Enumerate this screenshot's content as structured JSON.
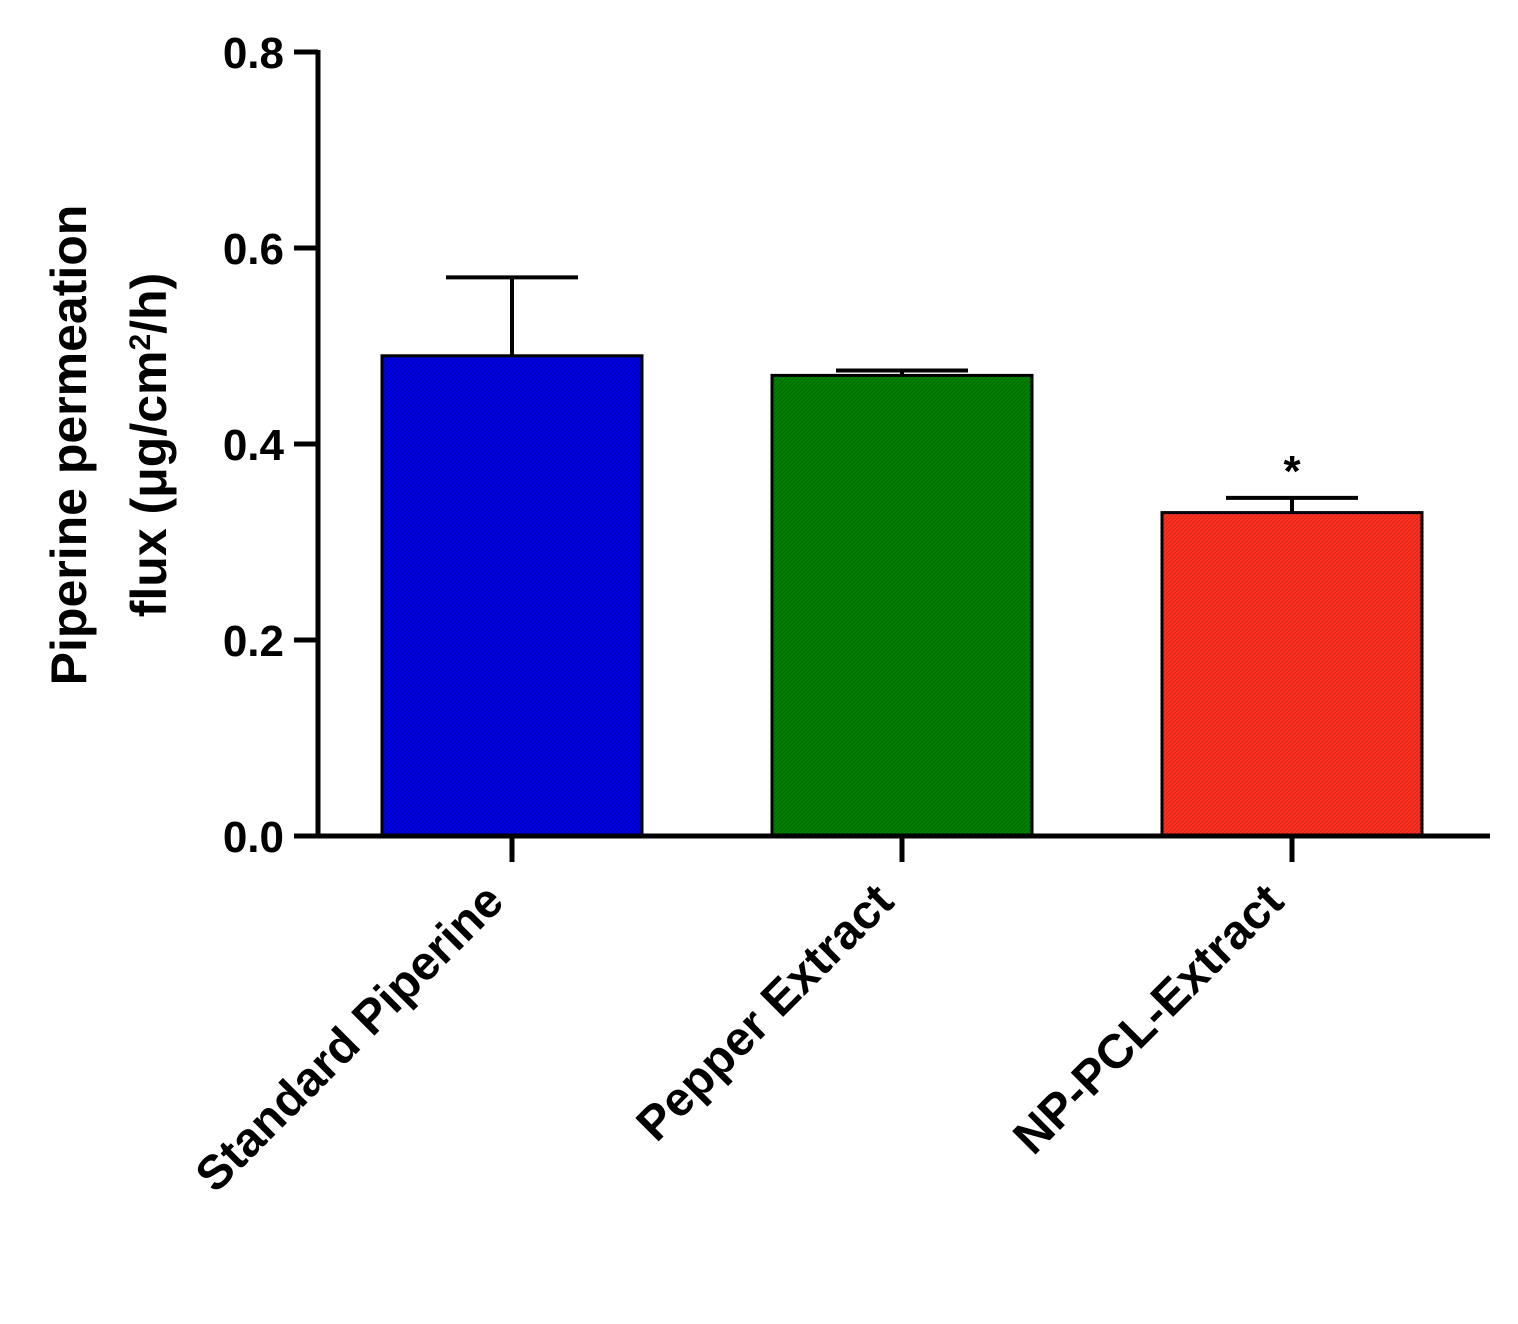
{
  "chart_data": {
    "type": "bar",
    "categories": [
      "Standard Piperine",
      "Pepper Extract",
      "NP-PCL-Extract"
    ],
    "values": [
      0.49,
      0.47,
      0.33
    ],
    "errors": [
      0.08,
      0.005,
      0.015
    ],
    "colors": [
      "#0000e0",
      "#008000",
      "#ff3020"
    ],
    "annotations": [
      "",
      "",
      "*"
    ],
    "ylabel_line1": "Piperine permeation",
    "ylabel_line2_prefix": "flux (μg/cm",
    "ylabel_line2_sup": "2",
    "ylabel_line2_suffix": "/h)",
    "ylim": [
      0,
      0.8
    ],
    "yticks": [
      0.0,
      0.2,
      0.4,
      0.6,
      0.8
    ],
    "ytick_labels": [
      "0.0",
      "0.2",
      "0.4",
      "0.6",
      "0.8"
    ],
    "grid": false,
    "legend": "none"
  }
}
